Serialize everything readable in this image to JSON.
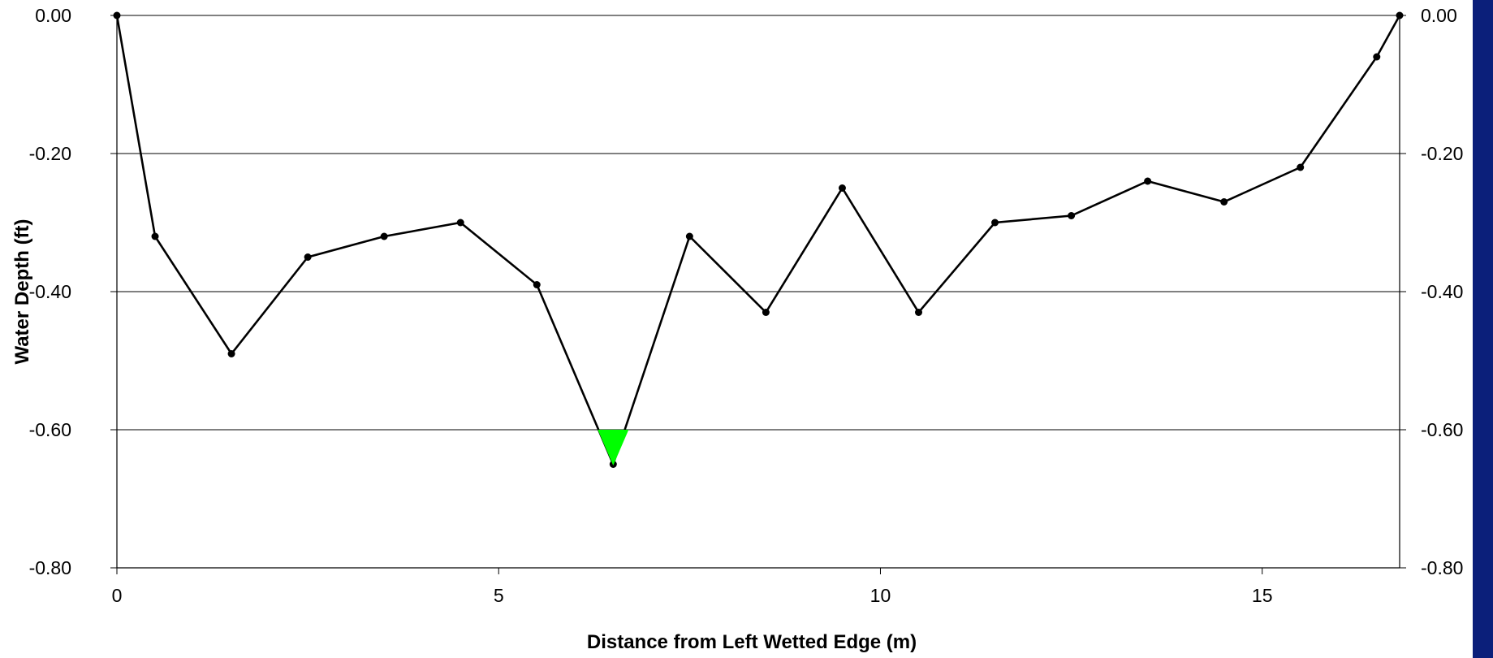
{
  "chart_data": {
    "type": "line",
    "title": "",
    "xlabel": "Distance from Left Wetted Edge (m)",
    "ylabel": "Water Depth (ft)",
    "xlim": [
      0,
      16.8
    ],
    "ylim": [
      -0.8,
      0.0
    ],
    "x_ticks": [
      "0",
      "5",
      "10",
      "15"
    ],
    "y_ticks": [
      "0.00",
      "-0.20",
      "-0.40",
      "-0.60",
      "-0.80"
    ],
    "y_ticks_right": [
      "0.00",
      "-0.20",
      "-0.40",
      "-0.60",
      "-0.80"
    ],
    "grid": true,
    "legend": "none",
    "series": [
      {
        "x": [
          0,
          0.5,
          1.5,
          2.5,
          3.5,
          4.5,
          5.5,
          6.5,
          7.5,
          8.5,
          9.5,
          10.5,
          11.5,
          12.5,
          13.5,
          14.5,
          15.5,
          16.5,
          16.8
        ],
        "y": [
          0.0,
          -0.32,
          -0.49,
          -0.35,
          -0.32,
          -0.3,
          -0.39,
          -0.65,
          -0.32,
          -0.43,
          -0.25,
          -0.43,
          -0.3,
          -0.29,
          -0.24,
          -0.27,
          -0.22,
          -0.06,
          0.0
        ]
      }
    ],
    "annotations": [
      {
        "type": "water-surface-marker",
        "x": 6.5,
        "y": -0.6,
        "color": "#00ff00"
      }
    ],
    "colors": {
      "line": "#000000",
      "marker": "#000000",
      "grid": "#000000",
      "water_marker": "#00ff00",
      "side_band": "#0b1f7a"
    }
  }
}
